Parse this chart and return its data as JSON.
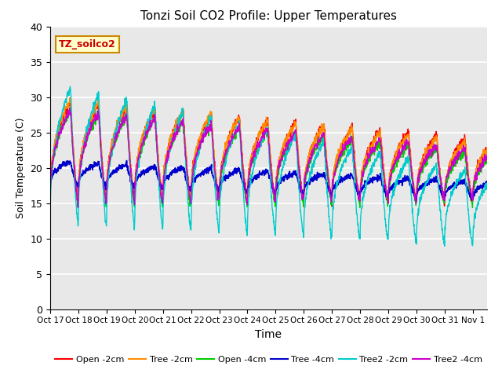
{
  "title": "Tonzi Soil CO2 Profile: Upper Temperatures",
  "xlabel": "Time",
  "ylabel": "Soil Temperature (C)",
  "ylim": [
    0,
    40
  ],
  "yticks": [
    0,
    5,
    10,
    15,
    20,
    25,
    30,
    35,
    40
  ],
  "bg_color": "#e8e8e8",
  "fig_bg": "#ffffff",
  "series": [
    {
      "label": "Open -2cm",
      "color": "#ff0000"
    },
    {
      "label": "Tree -2cm",
      "color": "#ff8c00"
    },
    {
      "label": "Open -4cm",
      "color": "#00cc00"
    },
    {
      "label": "Tree -4cm",
      "color": "#0000cc"
    },
    {
      "label": "Tree2 -2cm",
      "color": "#00cccc"
    },
    {
      "label": "Tree2 -4cm",
      "color": "#cc00cc"
    }
  ],
  "xtick_labels": [
    "Oct 17",
    "Oct 18",
    "Oct 19",
    "Oct 20",
    "Oct 21",
    "Oct 22",
    "Oct 23",
    "Oct 24",
    "Oct 25",
    "Oct 26",
    "Oct 27",
    "Oct 28",
    "Oct 29",
    "Oct 30",
    "Oct 31",
    "Nov 1"
  ],
  "text_box": "TZ_soilco2",
  "text_box_color": "#cc0000",
  "text_box_bg": "#ffffcc",
  "text_box_edge": "#cc8800"
}
